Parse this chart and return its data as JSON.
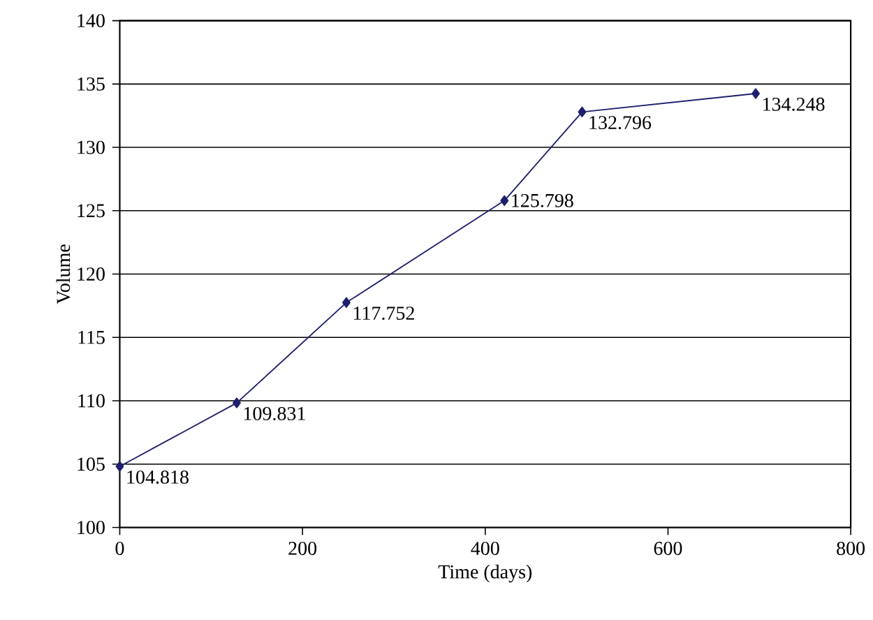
{
  "chart_data": {
    "type": "line",
    "xlabel": "Time (days)",
    "ylabel": "Volume",
    "x": [
      0,
      128,
      248,
      421,
      506,
      696
    ],
    "values": [
      104.818,
      109.831,
      117.752,
      125.798,
      132.796,
      134.248
    ],
    "color": "#1f1f6e",
    "marker": "diamond",
    "line_style": "solid",
    "data_labels": true,
    "grid": "y",
    "xlim": [
      0,
      800
    ],
    "xticks": [
      0,
      200,
      400,
      600,
      800
    ],
    "ylim": [
      100,
      140
    ],
    "yticks": [
      100,
      105,
      110,
      115,
      120,
      125,
      130,
      135,
      140
    ]
  }
}
